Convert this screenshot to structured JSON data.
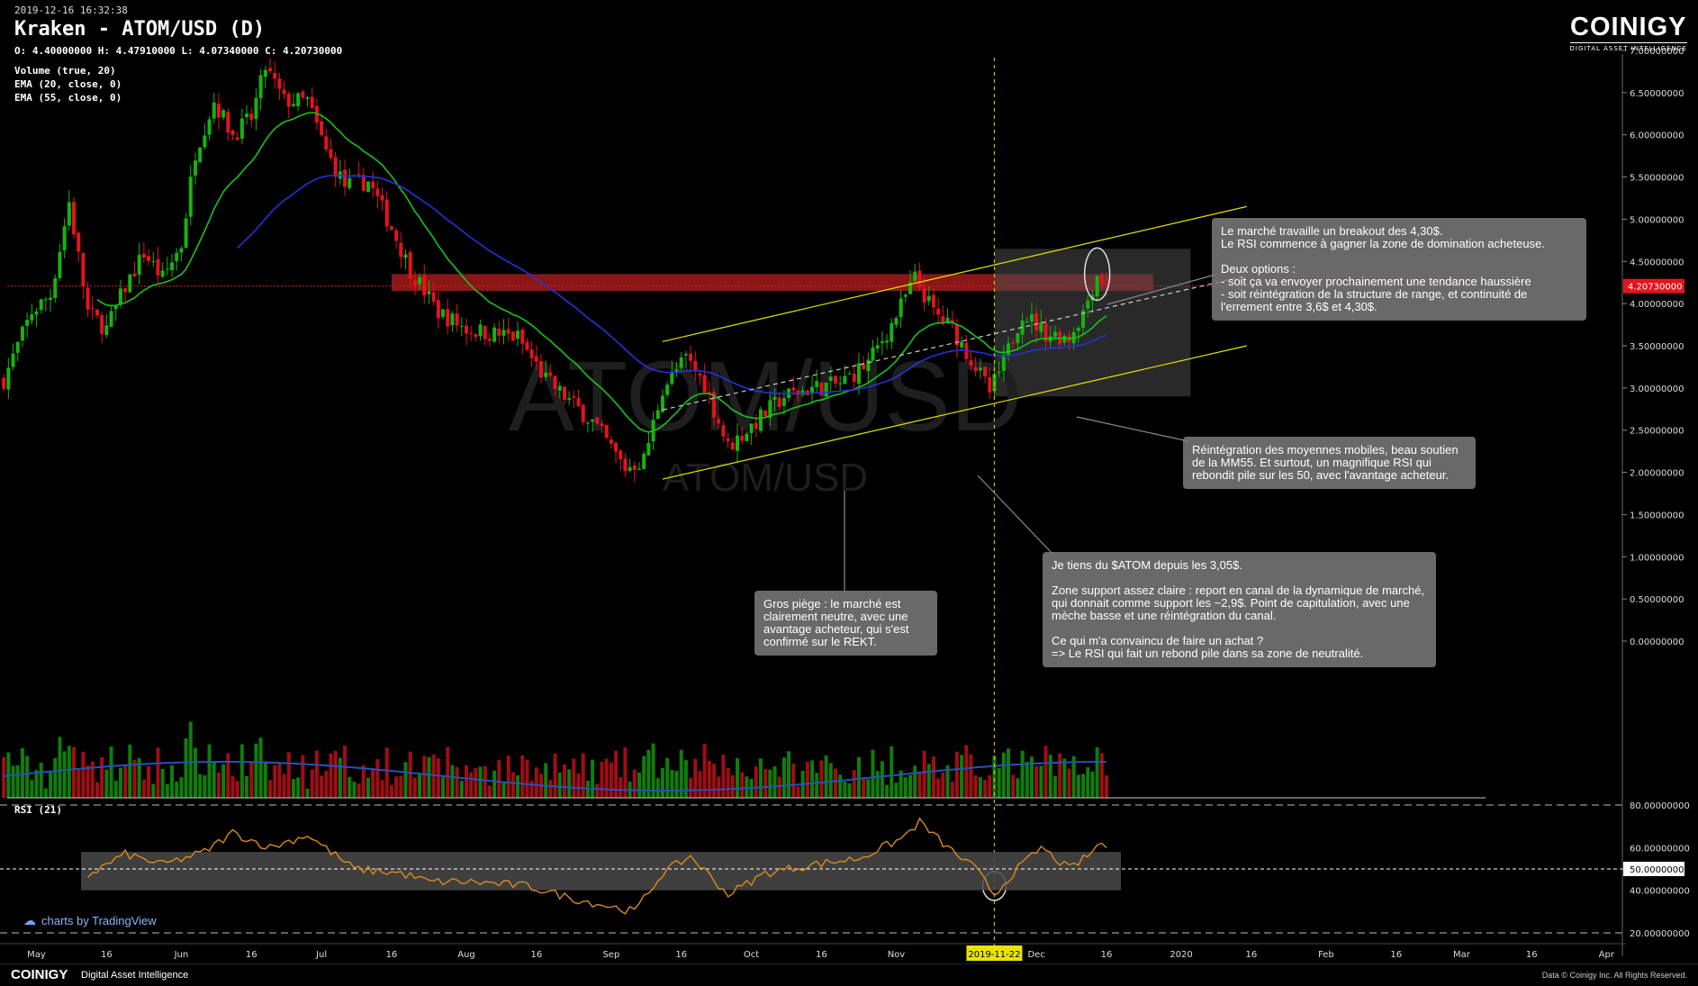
{
  "header": {
    "timestamp": "2019-12-16 16:32:38",
    "title": "Kraken - ATOM/USD (D)",
    "ohlc": "O: 4.40000000 H: 4.47910000 L: 4.07340000 C: 4.20730000",
    "indicators": [
      "Volume (true, 20)",
      "EMA (20, close, 0)",
      "EMA (55, close, 0)"
    ],
    "rsi_label": "RSI (21)"
  },
  "logo": {
    "name": "COINIGY",
    "tagline": "DIGITAL ASSET INTELLIGENCE"
  },
  "watermark": {
    "line1": "ATOM/USD",
    "line2": "ATOM/USD"
  },
  "colors": {
    "up": "#17b20f",
    "down": "#e3141c",
    "ema20": "#17c21a",
    "ema55": "#2233dd",
    "rsi": "#d98a1d",
    "channel": "#e6e200",
    "resistance": "#b81f1f",
    "price_line": "#e02020",
    "vertical_marker": "#c7c400",
    "background": "#000000"
  },
  "tradingview": {
    "text": "charts by TradingView"
  },
  "footer": {
    "brand": "COINIGY",
    "tagline": "Digital Asset Intelligence",
    "copyright": "Data © Coinigy Inc.  All Rights Reserved."
  },
  "annotations": [
    {
      "id": "breakout",
      "text": "Le marché travaille un breakout des 4,30$.\nLe RSI commence à gagner la zone de domination acheteuse.\n\nDeux options :\n- soit ça va envoyer prochainement une tendance haussière\n- soit réintégration de la structure de range, et continuité de l'errement entre 3,6$ et 4,30$."
    },
    {
      "id": "reintegration",
      "text": "Réintégration des moyennes mobiles, beau soutien de la MM55. Et surtout, un magnifique RSI qui rebondit pile sur les 50, avec l'avantage acheteur."
    },
    {
      "id": "position",
      "text": "Je tiens du $ATOM depuis les 3,05$.\n\nZone support assez claire : report en canal de la dynamique de marché, qui donnait comme support les ~2,9$. Point de capitulation, avec une mèche basse et une réintégration du canal.\n\nCe qui m'a convaincu de faire un achat ?\n=> Le RSI qui fait un rebond pile dans sa zone de neutralité."
    },
    {
      "id": "trap",
      "text": "Gros piège : le marché est clairement neutre, avec une avantage acheteur, qui s'est confirmé sur le REKT."
    }
  ],
  "chart_data": {
    "type": "candlestick",
    "instrument": "ATOM/USD",
    "exchange": "Kraken",
    "timeframe": "D",
    "price_axis": {
      "ylim": [
        0,
        7
      ],
      "ticks": [
        "7.00000000",
        "6.50000000",
        "6.00000000",
        "5.50000000",
        "5.00000000",
        "4.50000000",
        "4.00000000",
        "3.50000000",
        "3.00000000",
        "2.50000000",
        "2.00000000",
        "1.50000000",
        "1.00000000",
        "0.50000000",
        "0.00000000"
      ]
    },
    "last_price": "4.20730000",
    "rsi_axis": {
      "ylim": [
        20,
        80
      ],
      "ticks": [
        "80.00000000",
        "60.00000000",
        "50.00000000",
        "40.00000000",
        "20.00000000"
      ],
      "neutral_band": [
        40,
        58
      ]
    },
    "x_labels": [
      "May",
      "16",
      "Jun",
      "16",
      "Jul",
      "16",
      "Aug",
      "16",
      "Sep",
      "16",
      "Oct",
      "16",
      "Nov",
      "2019-11-22",
      "Dec",
      "16",
      "2020",
      "16",
      "Feb",
      "16",
      "Mar",
      "16",
      "Apr"
    ],
    "x_label_dates": [
      "2019-05-01",
      "2019-05-16",
      "2019-06-01",
      "2019-06-16",
      "2019-07-01",
      "2019-07-16",
      "2019-08-01",
      "2019-08-16",
      "2019-09-01",
      "2019-09-16",
      "2019-10-01",
      "2019-10-16",
      "2019-11-01",
      "2019-11-22",
      "2019-12-01",
      "2019-12-16",
      "2020-01-01",
      "2020-01-16",
      "2020-02-01",
      "2020-02-16",
      "2020-03-01",
      "2020-03-16",
      "2020-04-01"
    ],
    "marker_date": "2019-11-22",
    "resistance_zone": [
      4.15,
      4.35
    ],
    "channel": {
      "upper": [
        [
          "2019-09-12",
          3.55
        ],
        [
          "2020-01-15",
          5.15
        ]
      ],
      "lower": [
        [
          "2019-09-12",
          1.92
        ],
        [
          "2020-01-15",
          3.5
        ]
      ],
      "mid": [
        [
          "2019-09-12",
          2.74
        ],
        [
          "2020-01-15",
          4.33
        ]
      ]
    },
    "price_anchors": [
      [
        "2019-04-24",
        3.1
      ],
      [
        "2019-04-30",
        3.9
      ],
      [
        "2019-05-04",
        4.1
      ],
      [
        "2019-05-08",
        5.2
      ],
      [
        "2019-05-12",
        3.9
      ],
      [
        "2019-05-16",
        3.7
      ],
      [
        "2019-05-20",
        4.2
      ],
      [
        "2019-05-24",
        4.6
      ],
      [
        "2019-05-28",
        4.3
      ],
      [
        "2019-06-01",
        4.7
      ],
      [
        "2019-06-04",
        5.8
      ],
      [
        "2019-06-08",
        6.4
      ],
      [
        "2019-06-12",
        6.0
      ],
      [
        "2019-06-16",
        6.2
      ],
      [
        "2019-06-19",
        6.8
      ],
      [
        "2019-06-23",
        6.4
      ],
      [
        "2019-06-28",
        6.4
      ],
      [
        "2019-07-02",
        5.8
      ],
      [
        "2019-07-06",
        5.4
      ],
      [
        "2019-07-11",
        5.45
      ],
      [
        "2019-07-16",
        4.9
      ],
      [
        "2019-07-20",
        4.4
      ],
      [
        "2019-07-26",
        3.9
      ],
      [
        "2019-08-01",
        3.7
      ],
      [
        "2019-08-06",
        3.65
      ],
      [
        "2019-08-12",
        3.6
      ],
      [
        "2019-08-18",
        3.1
      ],
      [
        "2019-08-22",
        2.9
      ],
      [
        "2019-08-28",
        2.6
      ],
      [
        "2019-09-04",
        2.05
      ],
      [
        "2019-09-08",
        2.15
      ],
      [
        "2019-09-12",
        3.0
      ],
      [
        "2019-09-17",
        3.35
      ],
      [
        "2019-09-21",
        3.05
      ],
      [
        "2019-09-26",
        2.3
      ],
      [
        "2019-10-01",
        2.55
      ],
      [
        "2019-10-08",
        2.9
      ],
      [
        "2019-10-14",
        3.0
      ],
      [
        "2019-10-20",
        3.05
      ],
      [
        "2019-10-26",
        3.3
      ],
      [
        "2019-10-31",
        3.75
      ],
      [
        "2019-11-05",
        4.3
      ],
      [
        "2019-11-09",
        3.9
      ],
      [
        "2019-11-13",
        3.7
      ],
      [
        "2019-11-18",
        3.25
      ],
      [
        "2019-11-21",
        2.95
      ],
      [
        "2019-11-24",
        3.3
      ],
      [
        "2019-11-28",
        3.9
      ],
      [
        "2019-12-03",
        3.65
      ],
      [
        "2019-12-08",
        3.6
      ],
      [
        "2019-12-11",
        3.9
      ],
      [
        "2019-12-14",
        4.35
      ],
      [
        "2019-12-16",
        4.2
      ]
    ],
    "rsi_anchors": [
      [
        "2019-05-12",
        47
      ],
      [
        "2019-05-20",
        57
      ],
      [
        "2019-05-28",
        52
      ],
      [
        "2019-06-06",
        58
      ],
      [
        "2019-06-12",
        67
      ],
      [
        "2019-06-20",
        60
      ],
      [
        "2019-06-28",
        66
      ],
      [
        "2019-07-08",
        50
      ],
      [
        "2019-07-18",
        48
      ],
      [
        "2019-07-24",
        44
      ],
      [
        "2019-08-02",
        44
      ],
      [
        "2019-08-14",
        42
      ],
      [
        "2019-08-24",
        36
      ],
      [
        "2019-09-06",
        30
      ],
      [
        "2019-09-12",
        48
      ],
      [
        "2019-09-18",
        56
      ],
      [
        "2019-09-26",
        38
      ],
      [
        "2019-10-04",
        48
      ],
      [
        "2019-10-14",
        52
      ],
      [
        "2019-10-24",
        55
      ],
      [
        "2019-11-02",
        64
      ],
      [
        "2019-11-06",
        72
      ],
      [
        "2019-11-12",
        60
      ],
      [
        "2019-11-18",
        50
      ],
      [
        "2019-11-22",
        38
      ],
      [
        "2019-11-26",
        48
      ],
      [
        "2019-12-02",
        60
      ],
      [
        "2019-12-08",
        50
      ],
      [
        "2019-12-12",
        56
      ],
      [
        "2019-12-15",
        63
      ],
      [
        "2019-12-16",
        58
      ]
    ]
  }
}
